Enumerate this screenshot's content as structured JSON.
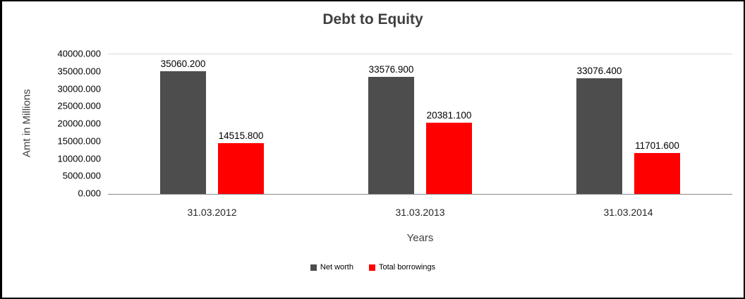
{
  "chart_data": {
    "type": "bar",
    "title": "Debt to Equity",
    "xlabel": "Years",
    "ylabel": "Amt in Millions",
    "categories": [
      "31.03.2012",
      "31.03.2013",
      "31.03.2014"
    ],
    "series": [
      {
        "name": "Net worth",
        "color": "#4d4d4d",
        "values": [
          35060.2,
          33576.9,
          33076.4
        ],
        "labels": [
          "35060.200",
          "33576.900",
          "33076.400"
        ]
      },
      {
        "name": "Total borrowings",
        "color": "#fe0000",
        "values": [
          14515.8,
          20381.1,
          11701.6
        ],
        "labels": [
          "14515.800",
          "20381.100",
          "11701.600"
        ]
      }
    ],
    "ylim": [
      0,
      40000
    ],
    "yticks": [
      "40000.000",
      "35000.000",
      "30000.000",
      "25000.000",
      "20000.000",
      "15000.000",
      "10000.000",
      "5000.000",
      "0.000"
    ],
    "legend_position": "bottom",
    "grid": false
  }
}
